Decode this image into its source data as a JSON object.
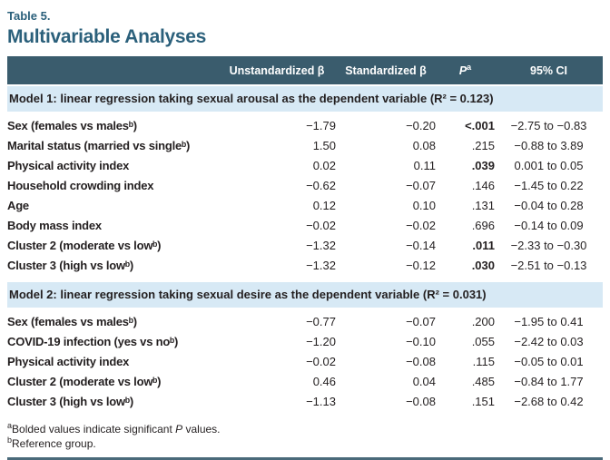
{
  "title": {
    "eyebrow": "Table 5.",
    "heading": "Multivariable Analyses"
  },
  "colors": {
    "accent_text": "#2b607b",
    "header_bg": "#3a5c6d",
    "section_bg": "#d7e9f5",
    "body_text": "#231f20",
    "bottom_rule": "#4a6a7a"
  },
  "table": {
    "headers": {
      "unstd": "Unstandardized β",
      "std": "Standardized β",
      "p_main": "P",
      "p_sup": "a",
      "ci": "95% CI"
    },
    "sections": [
      {
        "title": "Model 1: linear regression taking sexual arousal as the dependent variable (R² = 0.123)",
        "rows": [
          {
            "label": "Sex (females vs malesᵇ)",
            "unstd": "−1.79",
            "std": "−0.20",
            "p": "<.001",
            "p_bold": true,
            "ci": "−2.75 to −0.83"
          },
          {
            "label": "Marital status (married vs singleᵇ)",
            "unstd": "1.50",
            "std": "0.08",
            "p": ".215",
            "p_bold": false,
            "ci": "−0.88 to 3.89"
          },
          {
            "label": "Physical activity index",
            "unstd": "0.02",
            "std": "0.11",
            "p": ".039",
            "p_bold": true,
            "ci": "0.001 to 0.05"
          },
          {
            "label": "Household crowding index",
            "unstd": "−0.62",
            "std": "−0.07",
            "p": ".146",
            "p_bold": false,
            "ci": "−1.45 to 0.22"
          },
          {
            "label": "Age",
            "unstd": "0.12",
            "std": "0.10",
            "p": ".131",
            "p_bold": false,
            "ci": "−0.04 to 0.28"
          },
          {
            "label": "Body mass index",
            "unstd": "−0.02",
            "std": "−0.02",
            "p": ".696",
            "p_bold": false,
            "ci": "−0.14 to 0.09"
          },
          {
            "label": "Cluster 2 (moderate vs lowᵇ)",
            "unstd": "−1.32",
            "std": "−0.14",
            "p": ".011",
            "p_bold": true,
            "ci": "−2.33 to −0.30"
          },
          {
            "label": "Cluster 3 (high vs lowᵇ)",
            "unstd": "−1.32",
            "std": "−0.12",
            "p": ".030",
            "p_bold": true,
            "ci": "−2.51 to −0.13"
          }
        ]
      },
      {
        "title": "Model 2: linear regression taking sexual desire as the dependent variable (R² = 0.031)",
        "rows": [
          {
            "label": "Sex (females vs malesᵇ)",
            "unstd": "−0.77",
            "std": "−0.07",
            "p": ".200",
            "p_bold": false,
            "ci": "−1.95 to 0.41"
          },
          {
            "label": "COVID-19 infection (yes vs noᵇ)",
            "unstd": "−1.20",
            "std": "−0.10",
            "p": ".055",
            "p_bold": false,
            "ci": "−2.42 to 0.03"
          },
          {
            "label": "Physical activity index",
            "unstd": "−0.02",
            "std": "−0.08",
            "p": ".115",
            "p_bold": false,
            "ci": "−0.05 to 0.01"
          },
          {
            "label": "Cluster 2 (moderate vs lowᵇ)",
            "unstd": "0.46",
            "std": "0.04",
            "p": ".485",
            "p_bold": false,
            "ci": "−0.84 to 1.77"
          },
          {
            "label": "Cluster 3 (high vs lowᵇ)",
            "unstd": "−1.13",
            "std": "−0.08",
            "p": ".151",
            "p_bold": false,
            "ci": "−2.68 to 0.42"
          }
        ]
      }
    ]
  },
  "footnotes": [
    {
      "sup": "a",
      "pre": "Bolded values indicate significant ",
      "italic": "P",
      "post": " values."
    },
    {
      "sup": "b",
      "pre": "Reference group.",
      "italic": "",
      "post": ""
    }
  ]
}
